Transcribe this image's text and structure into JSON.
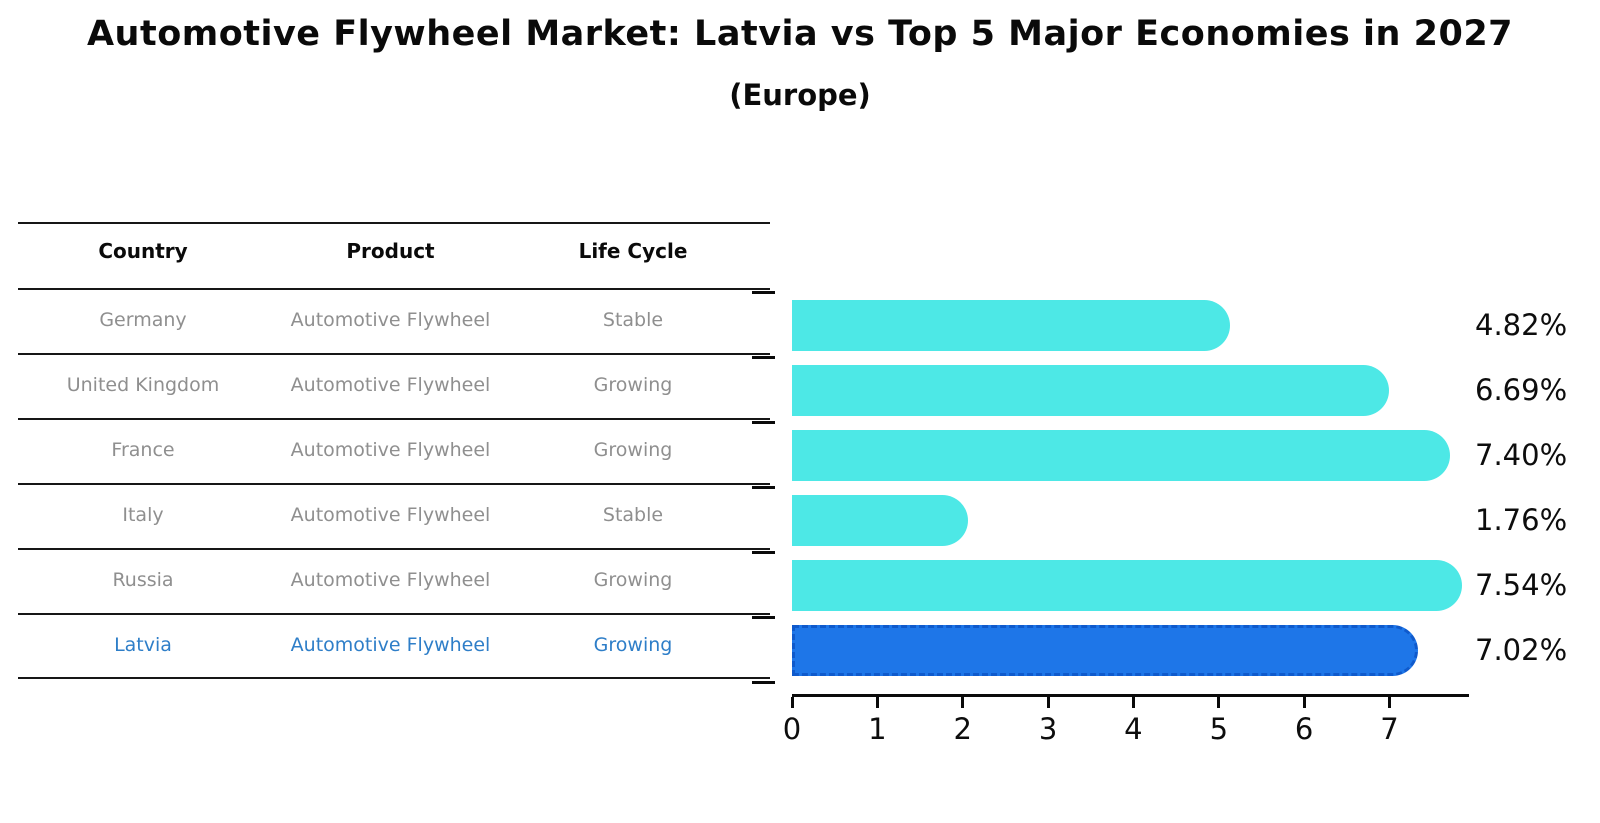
{
  "title": "Automotive Flywheel Market: Latvia vs Top 5 Major Economies in 2027",
  "subtitle": "(Europe)",
  "table": {
    "headers": [
      "Country",
      "Product",
      "Life Cycle"
    ],
    "rows": [
      {
        "country": "Germany",
        "product": "Automotive Flywheel",
        "life_cycle": "Stable",
        "highlighted": false
      },
      {
        "country": "United Kingdom",
        "product": "Automotive Flywheel",
        "life_cycle": "Growing",
        "highlighted": false
      },
      {
        "country": "France",
        "product": "Automotive Flywheel",
        "life_cycle": "Growing",
        "highlighted": false
      },
      {
        "country": "Italy",
        "product": "Automotive Flywheel",
        "life_cycle": "Stable",
        "highlighted": false
      },
      {
        "country": "Russia",
        "product": "Automotive Flywheel",
        "life_cycle": "Growing",
        "highlighted": false
      },
      {
        "country": "Latvia",
        "product": "Automotive Flywheel",
        "life_cycle": "Growing",
        "highlighted": true
      }
    ]
  },
  "chart_data": {
    "type": "bar",
    "orientation": "horizontal",
    "categories": [
      "Germany",
      "United Kingdom",
      "France",
      "Italy",
      "Russia",
      "Latvia"
    ],
    "values": [
      4.82,
      6.69,
      7.4,
      1.76,
      7.54,
      7.02
    ],
    "value_labels": [
      "4.82%",
      "6.69%",
      "7.40%",
      "1.76%",
      "7.54%",
      "7.02%"
    ],
    "title": "Automotive Flywheel Market: Latvia vs Top 5 Major Economies in 2027",
    "subtitle": "(Europe)",
    "xlabel": "",
    "ylabel": "",
    "x_ticks": [
      0,
      1,
      2,
      3,
      4,
      5,
      6,
      7
    ],
    "xlim": [
      0,
      7.92
    ],
    "grid": false,
    "legend": false,
    "highlight_category": "Latvia",
    "colors": {
      "bar": "#4DE8E6",
      "highlight_bar": "#1E76E8",
      "highlight_border": "#0F5ACC",
      "table_text": "#8f8f8f",
      "highlight_text": "#2E7EC8",
      "axis_text": "#0d0d0d"
    }
  }
}
